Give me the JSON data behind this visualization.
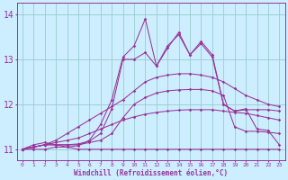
{
  "background_color": "#cceeff",
  "grid_color": "#99cccc",
  "line_color": "#993399",
  "xlabel": "Windchill (Refroidissement éolien,°C)",
  "ylabel_ticks": [
    11,
    12,
    13,
    14
  ],
  "xlim": [
    -0.5,
    23.5
  ],
  "ylim": [
    10.75,
    14.25
  ],
  "x": [
    0,
    1,
    2,
    3,
    4,
    5,
    6,
    7,
    8,
    9,
    10,
    11,
    12,
    13,
    14,
    15,
    16,
    17,
    18,
    19,
    20,
    21,
    22,
    23
  ],
  "curve1": [
    11.0,
    11.0,
    11.0,
    11.05,
    11.05,
    11.0,
    11.0,
    11.0,
    11.0,
    11.0,
    11.0,
    11.0,
    11.0,
    11.0,
    11.0,
    11.0,
    11.0,
    11.0,
    11.0,
    11.0,
    11.0,
    11.0,
    11.0,
    11.0
  ],
  "curve2": [
    11.0,
    11.05,
    11.1,
    11.15,
    11.2,
    11.25,
    11.35,
    11.45,
    11.55,
    11.65,
    11.72,
    11.78,
    11.82,
    11.85,
    11.87,
    11.88,
    11.88,
    11.88,
    11.85,
    11.82,
    11.8,
    11.75,
    11.7,
    11.65
  ],
  "curve3": [
    11.0,
    11.05,
    11.1,
    11.2,
    11.35,
    11.5,
    11.65,
    11.8,
    11.95,
    12.1,
    12.3,
    12.5,
    12.6,
    12.65,
    12.68,
    12.68,
    12.65,
    12.6,
    12.5,
    12.35,
    12.2,
    12.1,
    12.0,
    11.95
  ],
  "curve4": [
    11.0,
    11.05,
    11.1,
    11.1,
    11.1,
    11.1,
    11.15,
    11.2,
    11.35,
    11.7,
    12.0,
    12.15,
    12.25,
    12.3,
    12.32,
    12.33,
    12.33,
    12.3,
    12.2,
    11.5,
    11.4,
    11.4,
    11.38,
    11.35
  ],
  "curve5": [
    11.0,
    11.05,
    11.1,
    11.1,
    11.1,
    11.12,
    11.18,
    11.35,
    11.9,
    13.0,
    13.0,
    13.15,
    12.85,
    13.3,
    13.55,
    13.1,
    13.35,
    13.05,
    12.0,
    11.85,
    11.88,
    11.88,
    11.88,
    11.85
  ],
  "curve6": [
    11.0,
    11.1,
    11.15,
    11.1,
    11.05,
    11.08,
    11.2,
    11.55,
    12.1,
    13.05,
    13.3,
    13.9,
    12.85,
    13.25,
    13.6,
    13.1,
    13.4,
    13.1,
    12.0,
    11.85,
    11.9,
    11.45,
    11.42,
    11.1
  ]
}
